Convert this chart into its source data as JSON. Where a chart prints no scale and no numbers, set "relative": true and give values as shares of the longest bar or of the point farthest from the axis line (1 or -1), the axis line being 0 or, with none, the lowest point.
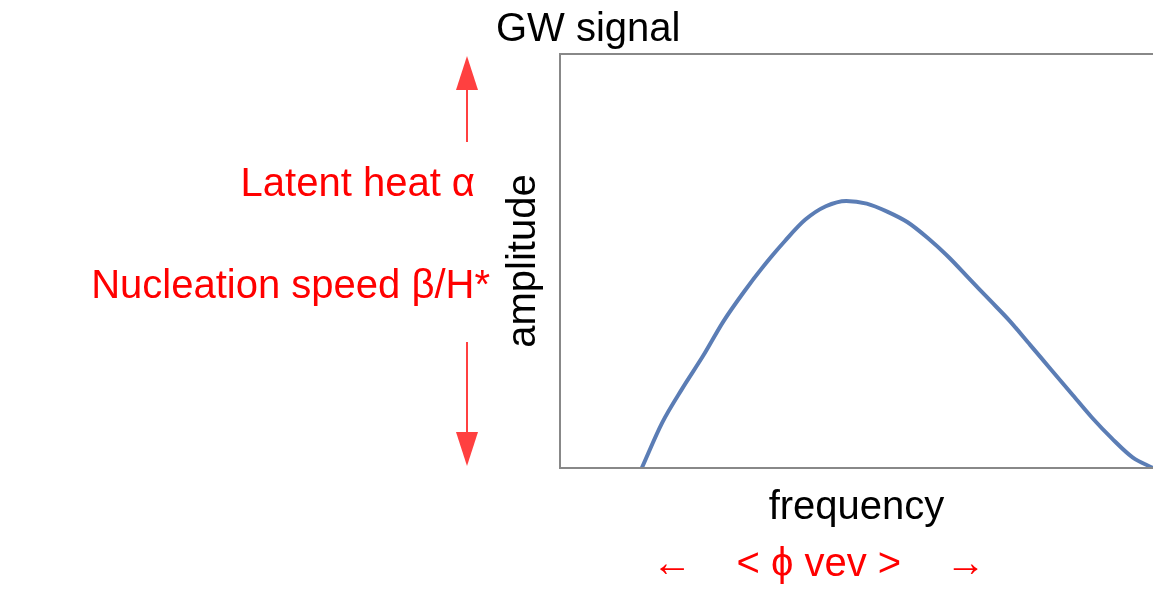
{
  "chart_data": {
    "type": "line",
    "title": "GW signal",
    "xlabel": "frequency",
    "ylabel": "amplitude",
    "relative": true,
    "marker": "none",
    "line_style": "solid",
    "categories": [
      null,
      null,
      null,
      null,
      null,
      null,
      null,
      null,
      null,
      null,
      null,
      null,
      null,
      null,
      null,
      null,
      null,
      null,
      null,
      null,
      null,
      null,
      null,
      null,
      null,
      null,
      null,
      null,
      null,
      null
    ],
    "series": [
      {
        "color": "#5b7db5",
        "values": [
          null,
          null,
          null,
          null,
          0,
          0.17,
          0.3,
          0.42,
          0.55,
          0.66,
          0.76,
          0.85,
          0.93,
          0.98,
          1,
          0.99,
          0.96,
          0.92,
          0.86,
          0.79,
          0.71,
          0.63,
          0.55,
          0.46,
          0.37,
          0.28,
          0.19,
          0.11,
          0.04,
          0
        ]
      }
    ],
    "annotations": [
      "Latent heat α",
      "Nucleation speed β/H*",
      "←    < ϕ vev >    →"
    ]
  }
}
